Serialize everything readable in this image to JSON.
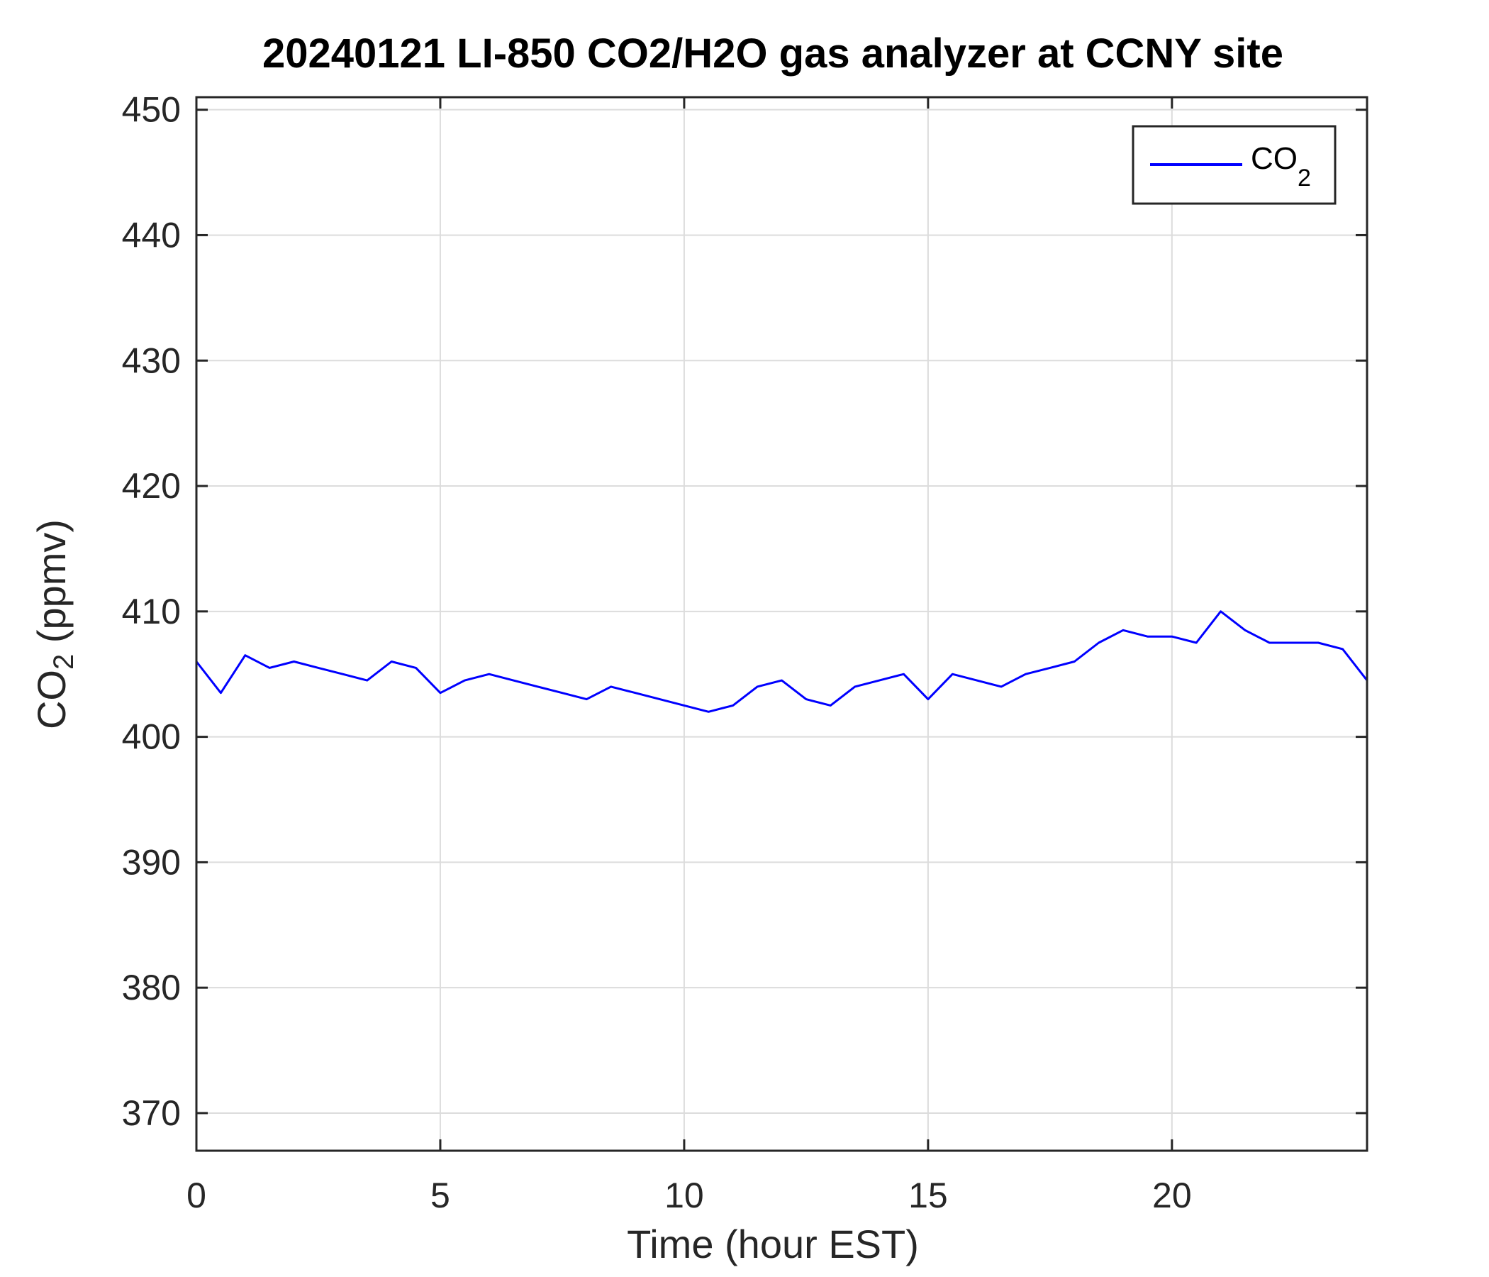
{
  "chart_data": {
    "type": "line",
    "title": "20240121 LI-850 CO2/H2O gas analyzer at CCNY site",
    "xlabel": "Time (hour EST)",
    "ylabel": {
      "main": "CO",
      "sub": "2",
      "rest": " (ppmv)"
    },
    "xlim": [
      0,
      24
    ],
    "ylim": [
      367,
      451
    ],
    "xticks": [
      0,
      5,
      10,
      15,
      20
    ],
    "xtick_labels": [
      "0",
      "5",
      "10",
      "15",
      "20"
    ],
    "yticks": [
      370,
      380,
      390,
      400,
      410,
      420,
      430,
      440,
      450
    ],
    "ytick_labels": [
      "370",
      "380",
      "390",
      "400",
      "410",
      "420",
      "430",
      "440",
      "450"
    ],
    "grid": true,
    "legend_position": "top-right",
    "colors": {
      "series": "#0000ff",
      "axes": "#262626",
      "grid": "#dcdcdc"
    },
    "series": [
      {
        "name": "CO2",
        "legend": {
          "main": "CO",
          "sub": "2"
        },
        "x": [
          0,
          0.5,
          1,
          1.5,
          2,
          2.5,
          3,
          3.5,
          4,
          4.5,
          5,
          5.5,
          6,
          6.5,
          7,
          7.5,
          8,
          8.5,
          9,
          9.5,
          10,
          10.5,
          11,
          11.5,
          12,
          12.5,
          13,
          13.5,
          14,
          14.5,
          15,
          15.5,
          16,
          16.5,
          17,
          17.5,
          18,
          18.5,
          19,
          19.5,
          20,
          20.5,
          21,
          21.5,
          22,
          22.5,
          23,
          23.5,
          24
        ],
        "y": [
          406,
          403.5,
          406.5,
          405.5,
          406,
          405.5,
          405,
          404.5,
          406,
          405.5,
          403.5,
          404.5,
          405,
          404.5,
          404,
          403.5,
          403,
          404,
          403.5,
          403,
          402.5,
          402,
          402.5,
          404,
          404.5,
          403,
          402.5,
          404,
          404.5,
          405,
          403,
          405,
          404.5,
          404,
          405,
          405.5,
          406,
          407.5,
          408.5,
          408,
          408,
          407.5,
          410,
          408.5,
          407.5,
          407.5,
          407.5,
          407,
          404.5
        ]
      }
    ]
  }
}
